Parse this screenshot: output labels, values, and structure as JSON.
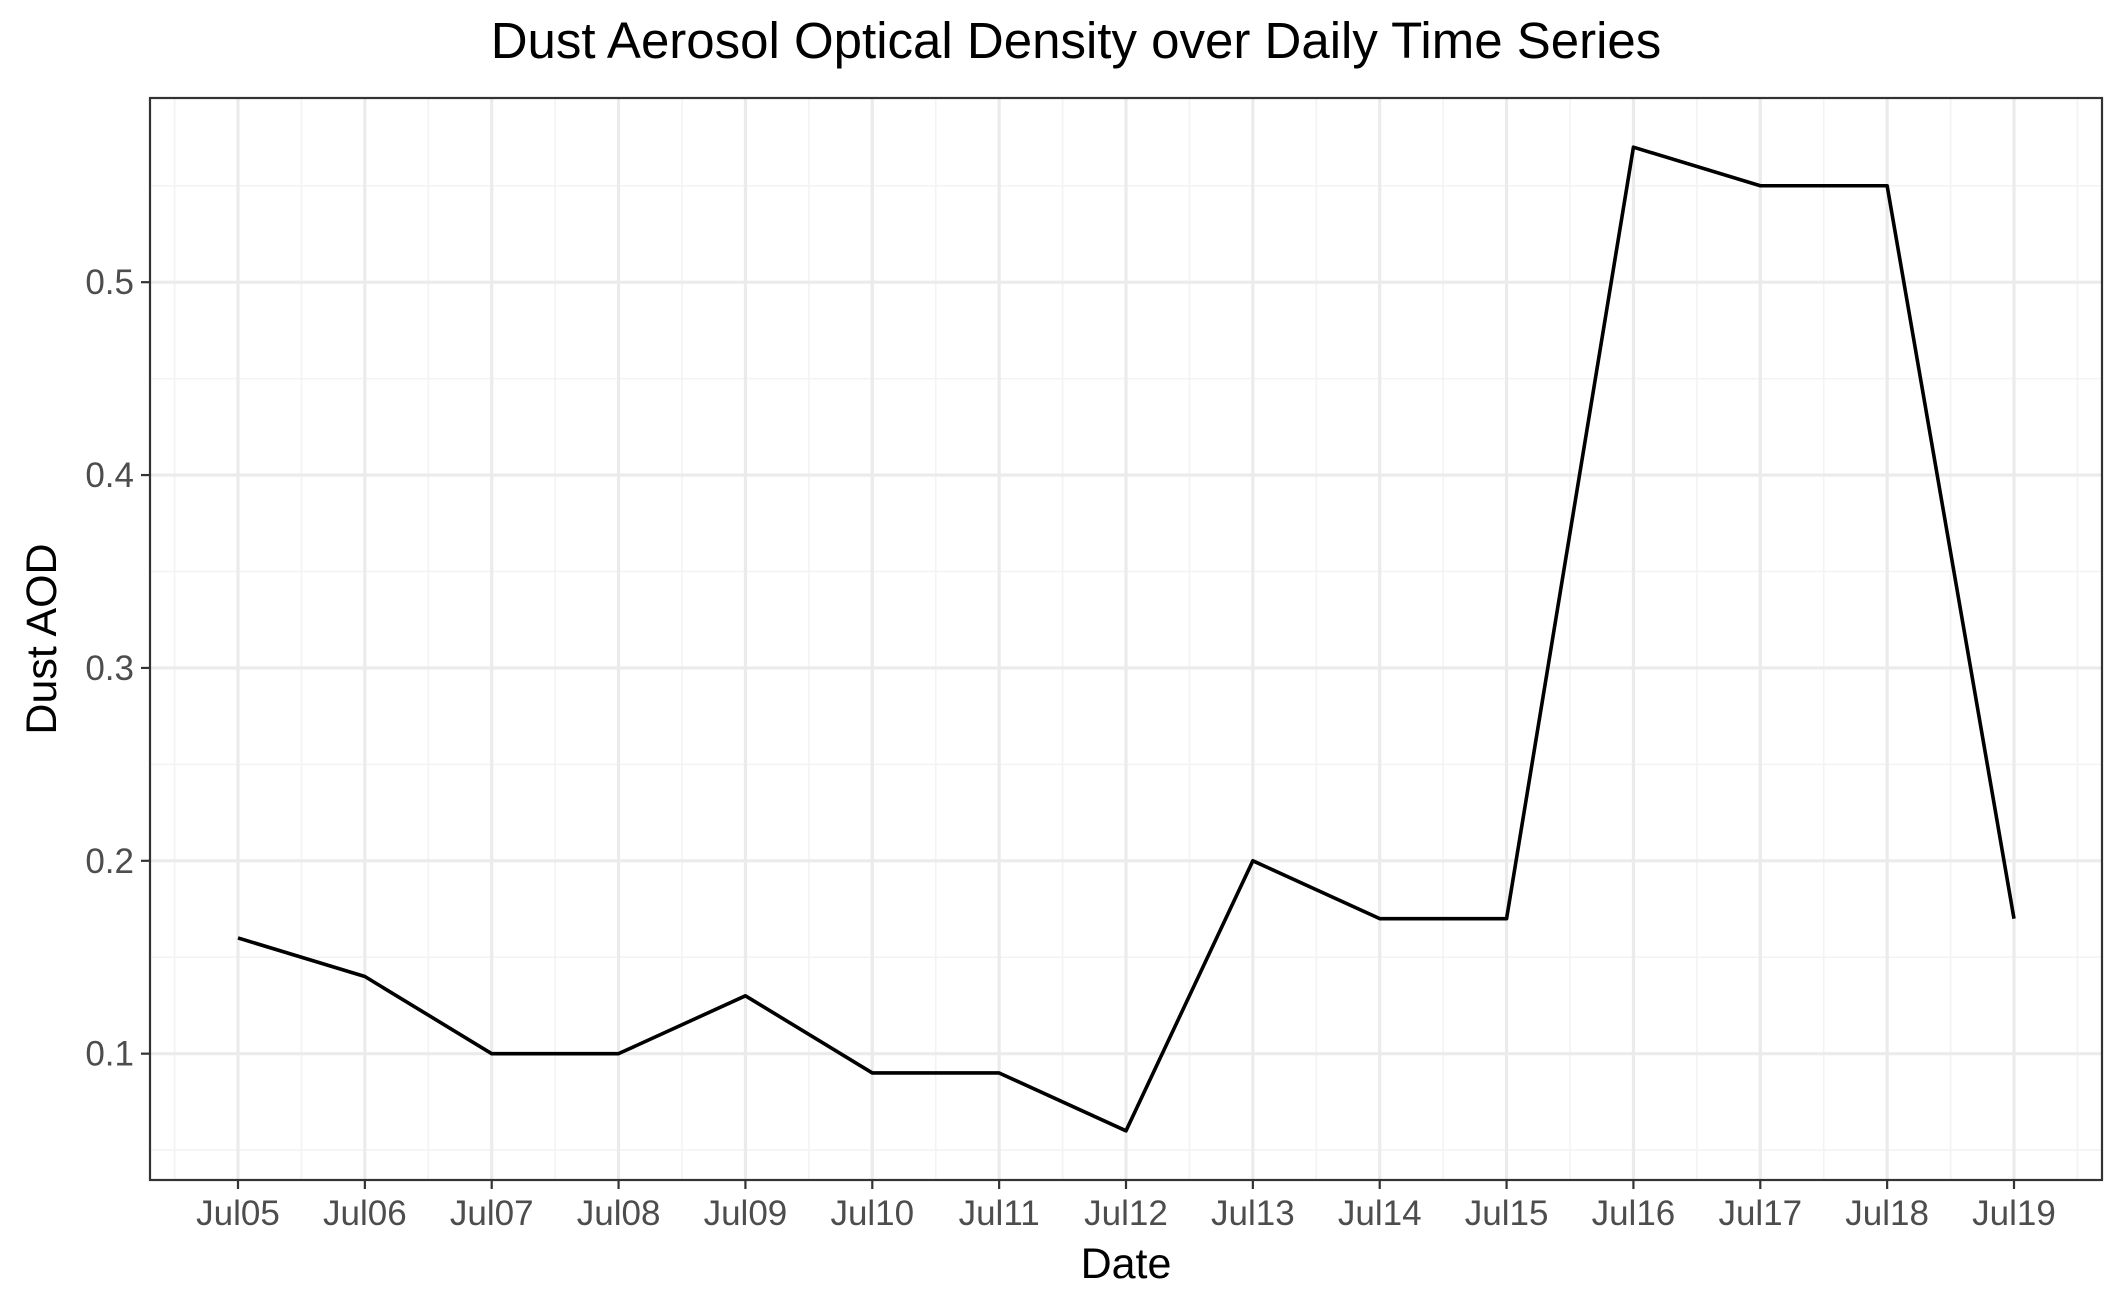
{
  "chart_data": {
    "type": "line",
    "title": "Dust Aerosol Optical Density over Daily Time Series",
    "xlabel": "Date",
    "ylabel": "Dust AOD",
    "categories": [
      "Jul05",
      "Jul06",
      "Jul07",
      "Jul08",
      "Jul09",
      "Jul10",
      "Jul11",
      "Jul12",
      "Jul13",
      "Jul14",
      "Jul15",
      "Jul16",
      "Jul17",
      "Jul18",
      "Jul19"
    ],
    "series": [
      {
        "values": [
          0.16,
          0.14,
          0.1,
          0.1,
          0.13,
          0.09,
          0.09,
          0.06,
          0.2,
          0.17,
          0.17,
          0.57,
          0.55,
          0.55,
          0.17
        ]
      }
    ],
    "yticks": [
      0.1,
      0.2,
      0.3,
      0.4,
      0.5
    ],
    "ytick_labels": [
      "0.1",
      "0.2",
      "0.3",
      "0.4",
      "0.5"
    ],
    "ylim": [
      0.0345,
      0.5955
    ],
    "grid": true,
    "legend": "none",
    "colors": {
      "line": "#000000",
      "grid": "#ebebeb",
      "panel_border": "#333333",
      "tick_text": "#4d4d4d"
    }
  }
}
